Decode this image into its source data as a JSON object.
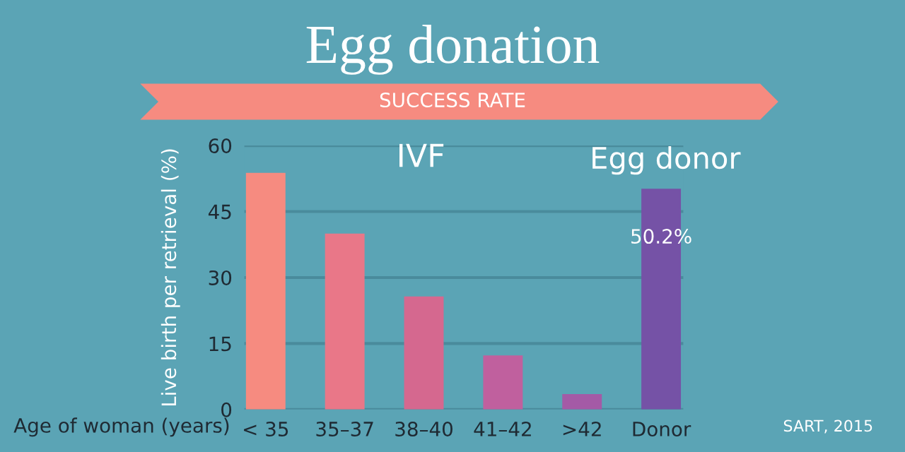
{
  "chart_data": {
    "type": "bar",
    "title": "Egg donation",
    "subtitle": "SUCCESS RATE",
    "xlabel": "Age of woman (years)",
    "ylabel": "Live birth per retrieval (%)",
    "categories": [
      "< 35",
      "35–37",
      "38–40",
      "41–42",
      ">42",
      "Donor"
    ],
    "values": [
      53.8,
      40.0,
      25.7,
      12.3,
      3.5,
      50.2
    ],
    "colors": [
      "#f68b80",
      "#e97788",
      "#d5688f",
      "#c0609e",
      "#a45aa6",
      "#7552a6"
    ],
    "value_labels": [
      null,
      null,
      null,
      null,
      null,
      "50.2%"
    ],
    "ylim": [
      0,
      60
    ],
    "yticks": [
      0,
      15,
      30,
      45,
      60
    ],
    "grid": "y",
    "annotations": [
      "IVF",
      "Egg donor",
      "SART, 2015"
    ]
  }
}
